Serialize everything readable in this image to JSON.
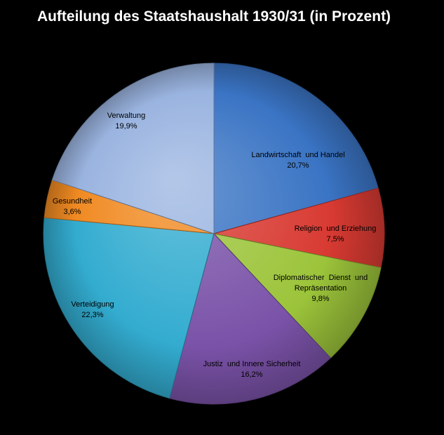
{
  "chart_data": {
    "type": "pie",
    "title": "Aufteilung des Staatshaushalt 1930/31 (in Prozent)",
    "start_angle_deg": 0,
    "direction": "clockwise",
    "slices": [
      {
        "label": "Landwirtschaft  und Handel",
        "value": 20.7,
        "value_label": "20,7%",
        "color": "#3a74c4"
      },
      {
        "label": "Religion  und Erziehung",
        "value": 7.5,
        "value_label": "7,5%",
        "color": "#d83a32"
      },
      {
        "label": "Diplomatischer  Dienst  und Repräsentation",
        "value": 9.8,
        "value_label": "9,8%",
        "color": "#9cc43a"
      },
      {
        "label": "Justiz  und Innere Sicherheit",
        "value": 16.2,
        "value_label": "16,2%",
        "color": "#7a52a8"
      },
      {
        "label": "Verteidigung",
        "value": 22.3,
        "value_label": "22,3%",
        "color": "#33acd0"
      },
      {
        "label": "Gesundheit",
        "value": 3.6,
        "value_label": "3,6%",
        "color": "#f08a22"
      },
      {
        "label": "Verwaltung",
        "value": 19.9,
        "value_label": "19,9%",
        "color": "#9ab4e0"
      }
    ],
    "background": "#000000",
    "title_color": "#ffffff",
    "label_color": "#000000"
  }
}
